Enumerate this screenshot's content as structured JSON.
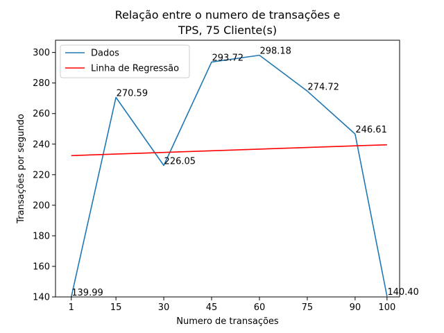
{
  "chart_data": {
    "type": "line",
    "title_line1": "Relação entre o numero de transações e",
    "title_line2": "TPS, 75 Cliente(s)",
    "xlabel": "Numero de transações",
    "ylabel": "Transações por segundo",
    "x": [
      1,
      15,
      30,
      45,
      60,
      75,
      90,
      100
    ],
    "xticks": [
      "1",
      "15",
      "30",
      "45",
      "60",
      "75",
      "90",
      "100"
    ],
    "yticks": [
      "140",
      "160",
      "180",
      "200",
      "220",
      "240",
      "260",
      "280",
      "300"
    ],
    "xlim": [
      -3.95,
      103.95
    ],
    "ylim": [
      140,
      308
    ],
    "grid": false,
    "legend_position": "top-left",
    "series": [
      {
        "name": "Dados",
        "color": "#1f77b4",
        "values": [
          139.99,
          270.59,
          226.05,
          293.72,
          298.18,
          274.72,
          246.61,
          140.4
        ],
        "labels": [
          "139.99",
          "270.59",
          "226.05",
          "293.72",
          "298.18",
          "274.72",
          "246.61",
          "140.40"
        ]
      },
      {
        "name": "Linha de Regressão",
        "color": "#ff0000",
        "x": [
          1,
          100
        ],
        "values": [
          232.5,
          239.6
        ]
      }
    ]
  }
}
